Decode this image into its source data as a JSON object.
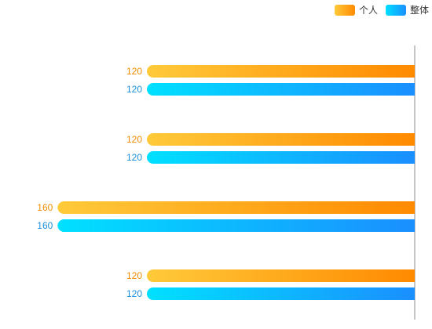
{
  "chart_data": {
    "type": "bar",
    "orientation": "horizontal",
    "inverted_x": true,
    "groups": 4,
    "series": [
      {
        "name": "个人",
        "values": [
          120,
          120,
          160,
          120
        ],
        "color_start": "#ffca3a",
        "color_end": "#ff8a00",
        "label_color": "#f08c00"
      },
      {
        "name": "整体",
        "values": [
          120,
          120,
          160,
          120
        ],
        "color_start": "#00e0ff",
        "color_end": "#1a8fff",
        "label_color": "#1a8fdc"
      }
    ],
    "xlim": [
      0,
      180
    ],
    "grid": false,
    "legend_position": "top-right"
  }
}
